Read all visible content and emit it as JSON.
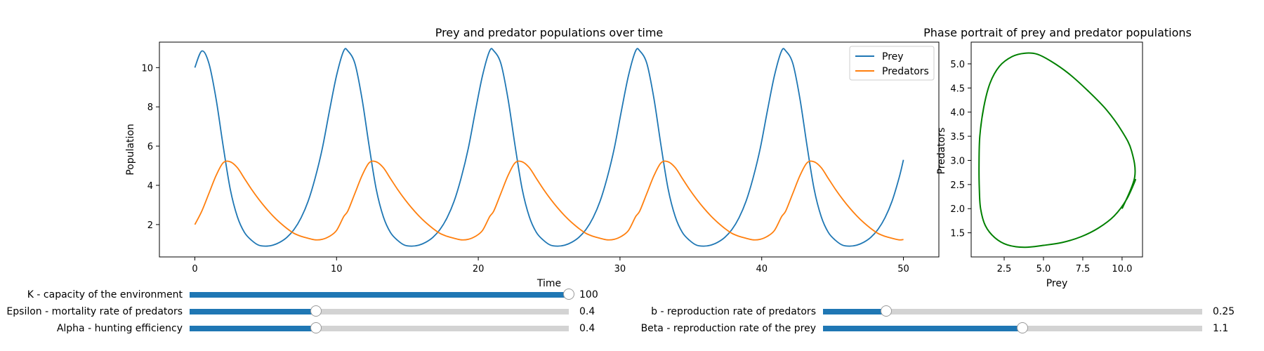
{
  "chart_data": [
    {
      "type": "line",
      "title": "Prey and predator populations over time",
      "xlabel": "Time",
      "ylabel": "Population",
      "xlim": [
        -2.5,
        52.5
      ],
      "ylim": [
        0.35,
        11.3
      ],
      "xticks": [
        0,
        10,
        20,
        30,
        40,
        50
      ],
      "yticks": [
        2,
        4,
        6,
        8,
        10
      ],
      "grid": false,
      "legend": "top-right",
      "series": [
        {
          "name": "Prey",
          "color": "#1f77b4",
          "x": [
            0,
            0.5,
            1.0,
            1.5,
            2.0,
            2.5,
            3.0,
            3.5,
            4.0,
            4.5,
            5.0,
            5.5,
            6.0,
            6.5,
            7.0,
            7.5,
            8.0,
            8.5,
            9.0,
            9.5,
            10.0,
            10.5
          ],
          "y": [
            10.0,
            10.85,
            10.2,
            8.4,
            6.0,
            3.8,
            2.4,
            1.6,
            1.2,
            0.95,
            0.9,
            0.95,
            1.1,
            1.35,
            1.75,
            2.35,
            3.2,
            4.4,
            5.9,
            7.8,
            9.6,
            10.85
          ]
        },
        {
          "name": "Predators",
          "color": "#ff7f0e",
          "x": [
            0,
            0.5,
            1.0,
            1.5,
            2.0,
            2.5,
            3.0,
            3.5,
            4.0,
            4.5,
            5.0,
            5.5,
            6.0,
            6.5,
            7.0,
            7.5,
            8.0,
            8.5,
            9.0,
            9.5,
            10.0,
            10.5
          ],
          "y": [
            2.0,
            2.7,
            3.6,
            4.5,
            5.15,
            5.2,
            4.9,
            4.35,
            3.8,
            3.3,
            2.85,
            2.45,
            2.1,
            1.8,
            1.55,
            1.4,
            1.3,
            1.22,
            1.25,
            1.4,
            1.7,
            2.4
          ]
        }
      ],
      "period": 10.3,
      "t_end": 50
    },
    {
      "type": "line",
      "title": "Phase portrait of prey and predator populations",
      "xlabel": "Prey",
      "ylabel": "Predators",
      "xlim": [
        0.4,
        11.3
      ],
      "ylim": [
        1.0,
        5.45
      ],
      "xticks": [
        2.5,
        5.0,
        7.5,
        10.0
      ],
      "yticks": [
        1.5,
        2.0,
        2.5,
        3.0,
        3.5,
        4.0,
        4.5,
        5.0
      ],
      "grid": false,
      "series": [
        {
          "color": "#008000",
          "x": [
            10.0,
            10.8,
            10.6,
            10.0,
            9.0,
            7.8,
            6.6,
            5.5,
            4.6,
            3.8,
            3.0,
            2.2,
            1.6,
            1.2,
            0.95,
            0.9,
            0.92,
            1.0,
            1.3,
            1.9,
            2.7,
            3.8,
            5.0,
            6.2,
            7.4,
            8.5,
            9.5,
            10.3,
            10.85,
            10.0
          ],
          "y": [
            2.0,
            2.65,
            3.2,
            3.6,
            4.05,
            4.45,
            4.8,
            5.05,
            5.2,
            5.22,
            5.15,
            4.95,
            4.6,
            4.1,
            3.5,
            2.9,
            2.4,
            2.0,
            1.65,
            1.4,
            1.25,
            1.2,
            1.24,
            1.3,
            1.42,
            1.6,
            1.85,
            2.2,
            2.6,
            2.0
          ]
        }
      ]
    }
  ],
  "sliders": [
    {
      "label": "K - capacity of the environment",
      "value": "100",
      "fraction": 1.0
    },
    {
      "label": "Epsilon - mortality rate of predators",
      "value": "0.4",
      "fraction": 0.333
    },
    {
      "label": "Alpha - hunting efficiency",
      "value": "0.4",
      "fraction": 0.333
    },
    {
      "label": "b - reproduction rate of predators",
      "value": "0.25",
      "fraction": 0.167
    },
    {
      "label": "Beta - reproduction rate of the prey",
      "value": "1.1",
      "fraction": 0.526
    }
  ]
}
